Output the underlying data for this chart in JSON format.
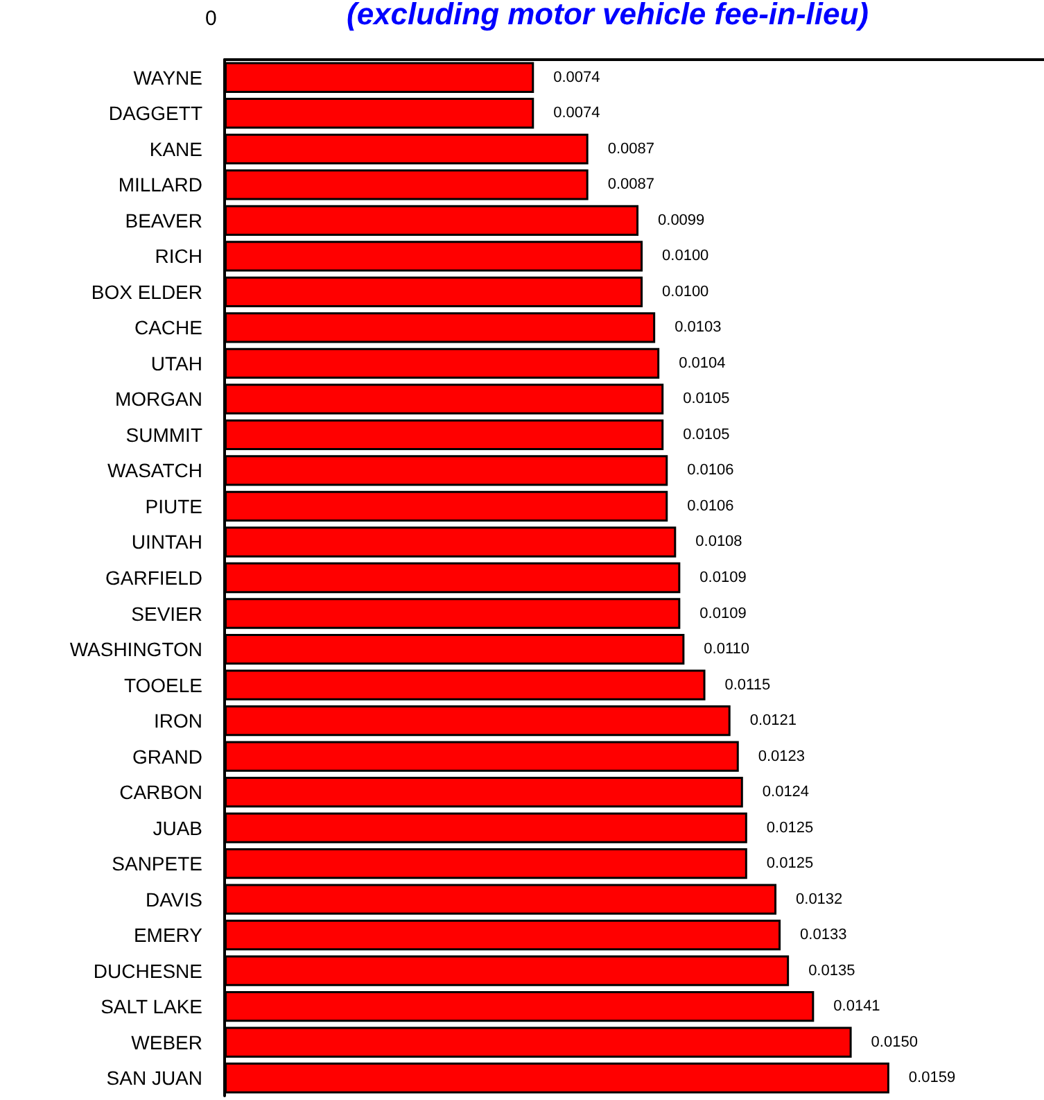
{
  "chart_data": {
    "type": "bar",
    "orientation": "horizontal",
    "title": "(excluding motor vehicle fee-in-lieu)",
    "categories": [
      "WAYNE",
      "DAGGETT",
      "KANE",
      "MILLARD",
      "BEAVER",
      "RICH",
      "BOX ELDER",
      "CACHE",
      "UTAH",
      "MORGAN",
      "SUMMIT",
      "WASATCH",
      "PIUTE",
      "UINTAH",
      "GARFIELD",
      "SEVIER",
      "WASHINGTON",
      "TOOELE",
      "IRON",
      "GRAND",
      "CARBON",
      "JUAB",
      "SANPETE",
      "DAVIS",
      "EMERY",
      "DUCHESNE",
      "SALT LAKE",
      "WEBER",
      "SAN JUAN"
    ],
    "values": [
      0.0074,
      0.0074,
      0.0087,
      0.0087,
      0.0099,
      0.01,
      0.01,
      0.0103,
      0.0104,
      0.0105,
      0.0105,
      0.0106,
      0.0106,
      0.0108,
      0.0109,
      0.0109,
      0.011,
      0.0115,
      0.0121,
      0.0123,
      0.0124,
      0.0125,
      0.0125,
      0.0132,
      0.0133,
      0.0135,
      0.0141,
      0.015,
      0.0159
    ],
    "value_labels": [
      "0.0074",
      "0.0074",
      "0.0087",
      "0.0087",
      "0.0099",
      "0.0100",
      "0.0100",
      "0.0103",
      "0.0104",
      "0.0105",
      "0.0105",
      "0.0106",
      "0.0106",
      "0.0108",
      "0.0109",
      "0.0109",
      "0.0110",
      "0.0115",
      "0.0121",
      "0.0123",
      "0.0124",
      "0.0125",
      "0.0125",
      "0.0132",
      "0.0133",
      "0.0135",
      "0.0141",
      "0.0150",
      "0.0159"
    ],
    "color": "#ff0000",
    "xlim": [
      0,
      0.0196
    ],
    "annotations": [
      "0"
    ],
    "data_labels": false
  }
}
